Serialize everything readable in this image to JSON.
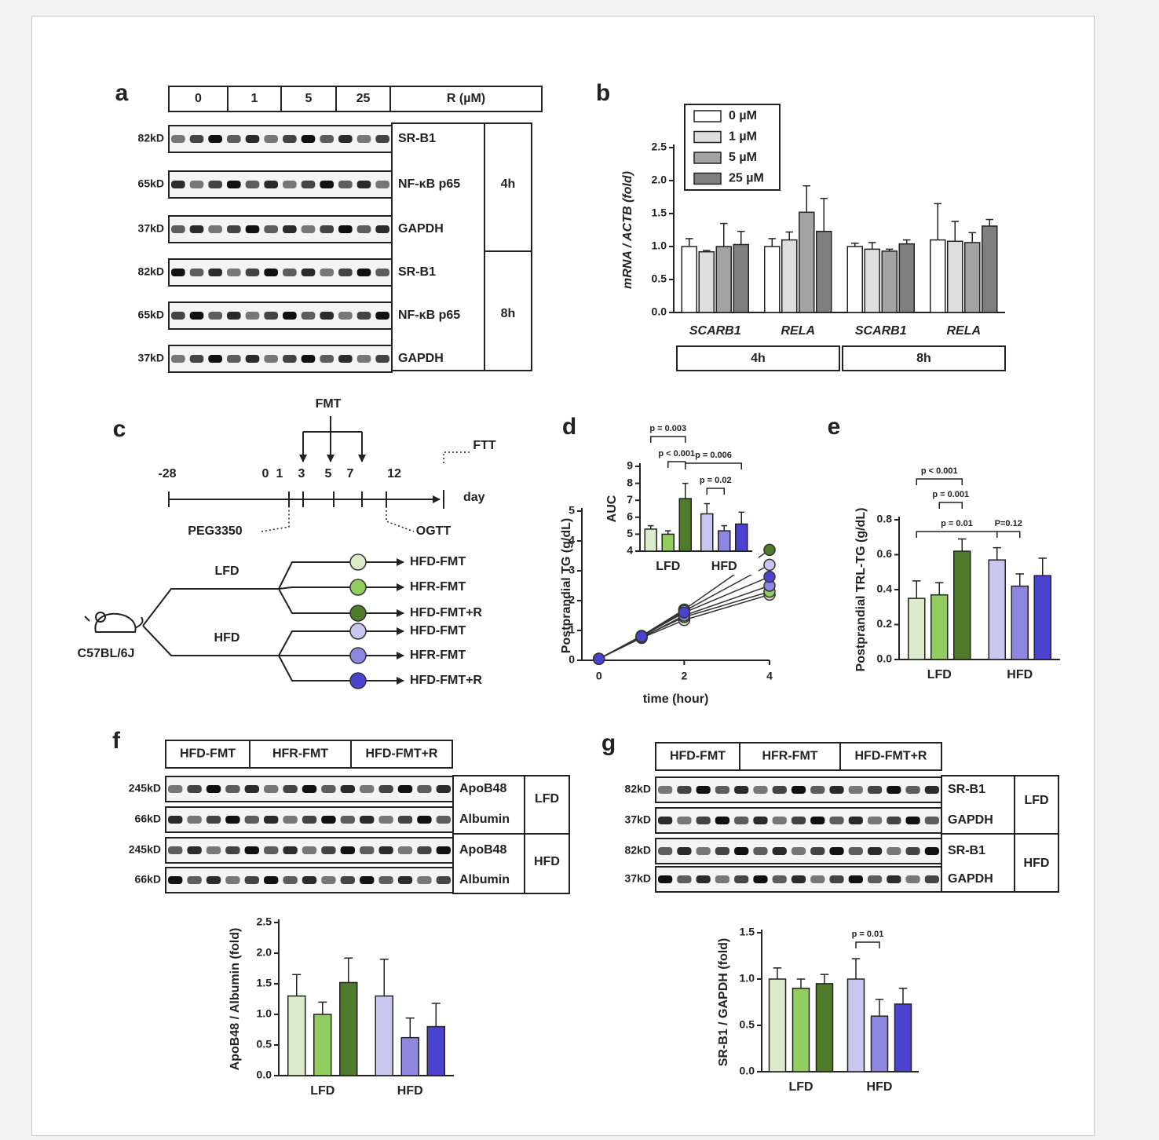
{
  "panels": [
    "a",
    "b",
    "c",
    "d",
    "e",
    "f",
    "g"
  ],
  "blot_a": {
    "header": [
      0,
      1,
      5,
      25,
      "R (µM)"
    ],
    "rows": [
      {
        "kd": "82kD",
        "protein": "SR-B1"
      },
      {
        "kd": "65kD",
        "protein": "NF-κB p65"
      },
      {
        "kd": "37kD",
        "protein": "GAPDH"
      },
      {
        "kd": "82kD",
        "protein": "SR-B1"
      },
      {
        "kd": "65kD",
        "protein": "NF-κB p65"
      },
      {
        "kd": "37kD",
        "protein": "GAPDH"
      }
    ],
    "times": [
      "4h",
      "8h"
    ]
  },
  "timeline": {
    "fmt": "FMT",
    "ftt": "FTT",
    "day": "day",
    "ticks": [
      -28,
      0,
      1,
      3,
      5,
      7,
      12
    ],
    "peg": "PEG3350",
    "ogtt": "OGTT",
    "mouse": "C57BL/6J",
    "diets": [
      {
        "label": "LFD",
        "arms": [
          "HFD-FMT",
          "HFR-FMT",
          "HFD-FMT+R"
        ]
      },
      {
        "label": "HFD",
        "arms": [
          "HFD-FMT",
          "HFR-FMT",
          "HFD-FMT+R"
        ]
      }
    ]
  },
  "blot_f": {
    "header": [
      "HFD-FMT",
      "HFR-FMT",
      "HFD-FMT+R"
    ],
    "rows": [
      {
        "kd": "245kD",
        "protein": "ApoB48"
      },
      {
        "kd": "66kD",
        "protein": "Albumin"
      },
      {
        "kd": "245kD",
        "protein": "ApoB48"
      },
      {
        "kd": "66kD",
        "protein": "Albumin"
      }
    ],
    "diets": [
      "LFD",
      "HFD"
    ]
  },
  "blot_g": {
    "header": [
      "HFD-FMT",
      "HFR-FMT",
      "HFD-FMT+R"
    ],
    "rows": [
      {
        "kd": "82kD",
        "protein": "SR-B1"
      },
      {
        "kd": "37kD",
        "protein": "GAPDH"
      },
      {
        "kd": "82kD",
        "protein": "SR-B1"
      },
      {
        "kd": "37kD",
        "protein": "GAPDH"
      }
    ],
    "diets": [
      "LFD",
      "HFD"
    ]
  },
  "chart_data": [
    {
      "type": "bar",
      "ylabel": "mRNA / ACTB (fold)",
      "categories": [
        "SCARB1",
        "RELA",
        "SCARB1",
        "RELA"
      ],
      "groups": [
        "4h",
        "8h"
      ],
      "series": [
        {
          "name": "0 µM",
          "color": "#ffffff",
          "values": [
            1.0,
            1.0,
            1.0,
            1.1
          ],
          "errors": [
            0.12,
            0.12,
            0.05,
            0.55
          ]
        },
        {
          "name": "1 µM",
          "color": "#dedede",
          "values": [
            0.92,
            1.1,
            0.96,
            1.08
          ],
          "errors": [
            0.02,
            0.12,
            0.1,
            0.3
          ]
        },
        {
          "name": "5 µM",
          "color": "#a3a3a3",
          "values": [
            1.0,
            1.52,
            0.93,
            1.06
          ],
          "errors": [
            0.35,
            0.4,
            0.03,
            0.15
          ]
        },
        {
          "name": "25 µM",
          "color": "#7f7f7f",
          "values": [
            1.03,
            1.23,
            1.04,
            1.31
          ],
          "errors": [
            0.2,
            0.5,
            0.06,
            0.1
          ]
        }
      ],
      "ylim": [
        0,
        2.5
      ],
      "yticks": [
        {
          "value": 0,
          "label": "0.0"
        },
        0.5,
        {
          "value": 1,
          "label": "1.0"
        },
        1.5,
        {
          "value": 2,
          "label": "2.0"
        },
        2.5
      ]
    },
    {
      "type": "line",
      "xlabel": "time (hour)",
      "ylabel": "Postprandial TG (g/dL)",
      "x": [
        0,
        1,
        2,
        4
      ],
      "series": [
        {
          "color": "#dcebc9",
          "values": [
            0.05,
            0.75,
            1.35,
            2.2
          ]
        },
        {
          "color": "#93cd5f",
          "values": [
            0.05,
            0.78,
            1.45,
            2.3
          ]
        },
        {
          "color": "#4f7a2c",
          "values": [
            0.05,
            0.82,
            1.7,
            3.7
          ]
        },
        {
          "color": "#c9c6ef",
          "values": [
            0.05,
            0.8,
            1.65,
            3.2
          ]
        },
        {
          "color": "#8d87e1",
          "values": [
            0.05,
            0.76,
            1.5,
            2.5
          ]
        },
        {
          "color": "#4a43cf",
          "values": [
            0.05,
            0.8,
            1.6,
            2.8
          ]
        }
      ],
      "xlim": [
        -0.4,
        4
      ],
      "xticks": [
        0,
        2,
        4
      ],
      "ylim": [
        0,
        5
      ],
      "yticks": [
        0,
        1,
        2,
        3,
        4,
        5
      ]
    },
    {
      "type": "bar",
      "ylabel": "AUC",
      "categories": [
        "LFD",
        "HFD"
      ],
      "values": [
        [
          5.3,
          5.0,
          7.1
        ],
        [
          6.2,
          5.2,
          5.6
        ]
      ],
      "errors": [
        [
          0.2,
          0.2,
          0.9
        ],
        [
          0.6,
          0.3,
          0.7
        ]
      ],
      "colors": [
        [
          "#dcebc9",
          "#93cd5f",
          "#4f7a2c"
        ],
        [
          "#c9c6ef",
          "#8d87e1",
          "#4a43cf"
        ]
      ],
      "ylim": [
        4,
        9
      ],
      "yticks": [
        4,
        5,
        6,
        7,
        8,
        9
      ],
      "annotations": [
        "p = 0.003",
        "p < 0.001",
        "p = 0.006",
        "p = 0.02"
      ]
    },
    {
      "type": "bar",
      "ylabel": "Postprandial TRL-TG (g/dL)",
      "categories": [
        "LFD",
        "HFD"
      ],
      "values": [
        [
          0.35,
          0.37,
          0.62
        ],
        [
          0.57,
          0.42,
          0.48
        ]
      ],
      "errors": [
        [
          0.1,
          0.07,
          0.07
        ],
        [
          0.07,
          0.07,
          0.1
        ]
      ],
      "colors": [
        [
          "#dcebc9",
          "#93cd5f",
          "#4f7a2c"
        ],
        [
          "#c9c6ef",
          "#8d87e1",
          "#4a43cf"
        ]
      ],
      "ylim": [
        0,
        0.8
      ],
      "yticks": [
        {
          "value": 0,
          "label": "0.0"
        },
        0.2,
        0.4,
        0.6,
        0.8
      ],
      "annotations": [
        "p < 0.001",
        "p = 0.001",
        "p = 0.01",
        "P=0.12"
      ]
    },
    {
      "type": "bar",
      "ylabel": "ApoB48 / Albumin (fold)",
      "categories": [
        "LFD",
        "HFD"
      ],
      "values": [
        [
          1.3,
          1.0,
          1.52
        ],
        [
          1.3,
          0.62,
          0.8
        ]
      ],
      "errors": [
        [
          0.35,
          0.2,
          0.4
        ],
        [
          0.6,
          0.32,
          0.38
        ]
      ],
      "colors": [
        [
          "#dcebc9",
          "#93cd5f",
          "#4f7a2c"
        ],
        [
          "#c9c6ef",
          "#8d87e1",
          "#4a43cf"
        ]
      ],
      "ylim": [
        0,
        2.5
      ],
      "yticks": [
        {
          "value": 0,
          "label": "0.0"
        },
        0.5,
        {
          "value": 1,
          "label": "1.0"
        },
        1.5,
        {
          "value": 2,
          "label": "2.0"
        },
        2.5
      ]
    },
    {
      "type": "bar",
      "ylabel": "SR-B1 / GAPDH (fold)",
      "categories": [
        "LFD",
        "HFD"
      ],
      "values": [
        [
          1.0,
          0.9,
          0.95
        ],
        [
          1.0,
          0.6,
          0.73
        ]
      ],
      "errors": [
        [
          0.12,
          0.1,
          0.1
        ],
        [
          0.22,
          0.18,
          0.17
        ]
      ],
      "colors": [
        [
          "#dcebc9",
          "#93cd5f",
          "#4f7a2c"
        ],
        [
          "#c9c6ef",
          "#8d87e1",
          "#4a43cf"
        ]
      ],
      "ylim": [
        0,
        1.5
      ],
      "yticks": [
        {
          "value": 0,
          "label": "0.0"
        },
        0.5,
        {
          "value": 1,
          "label": "1.0"
        },
        1.5
      ],
      "annotations": [
        "p = 0.01"
      ]
    }
  ]
}
